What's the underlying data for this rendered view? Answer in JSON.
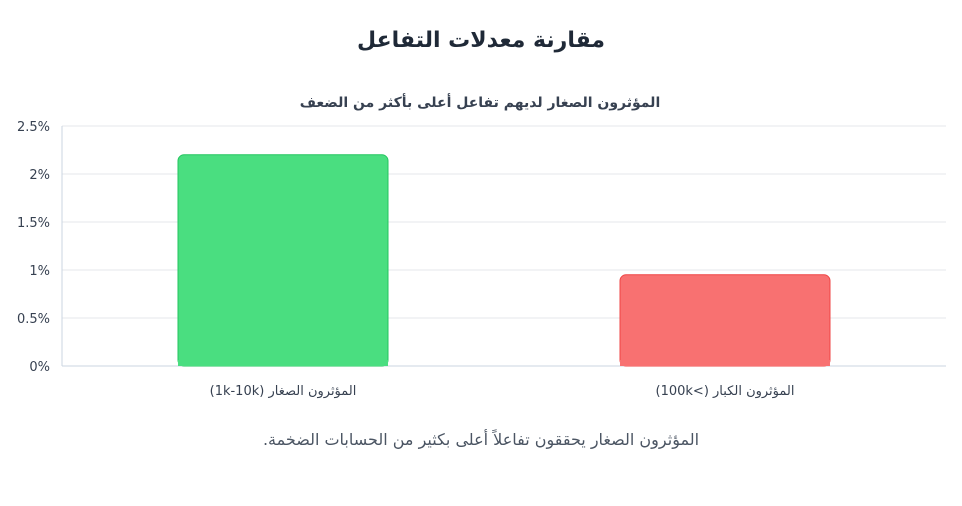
{
  "page": {
    "title": "مقارنة معدلات التفاعل",
    "caption": "المؤثرون الصغار يحققون تفاعلاً أعلى بكثير من الحسابات الضخمة."
  },
  "chart_data": {
    "type": "bar",
    "title": "المؤثرون الصغار لديهم تفاعل أعلى بأكثر من الضعف",
    "categories": [
      "المؤثرون الصغار (1k-10k)",
      "المؤثرون الكبار (>100k)"
    ],
    "values": [
      2.2,
      0.95
    ],
    "unit": "%",
    "ylim": [
      0,
      2.5
    ],
    "yticks": [
      "0%",
      "0.5%",
      "1%",
      "1.5%",
      "2%",
      "2.5%"
    ],
    "ytick_values": [
      0,
      0.5,
      1,
      1.5,
      2,
      2.5
    ],
    "colors": [
      "#4ade80",
      "#f87171"
    ],
    "border_colors": [
      "#22c55e",
      "#ef4444"
    ],
    "grid": true,
    "legend": "none"
  }
}
